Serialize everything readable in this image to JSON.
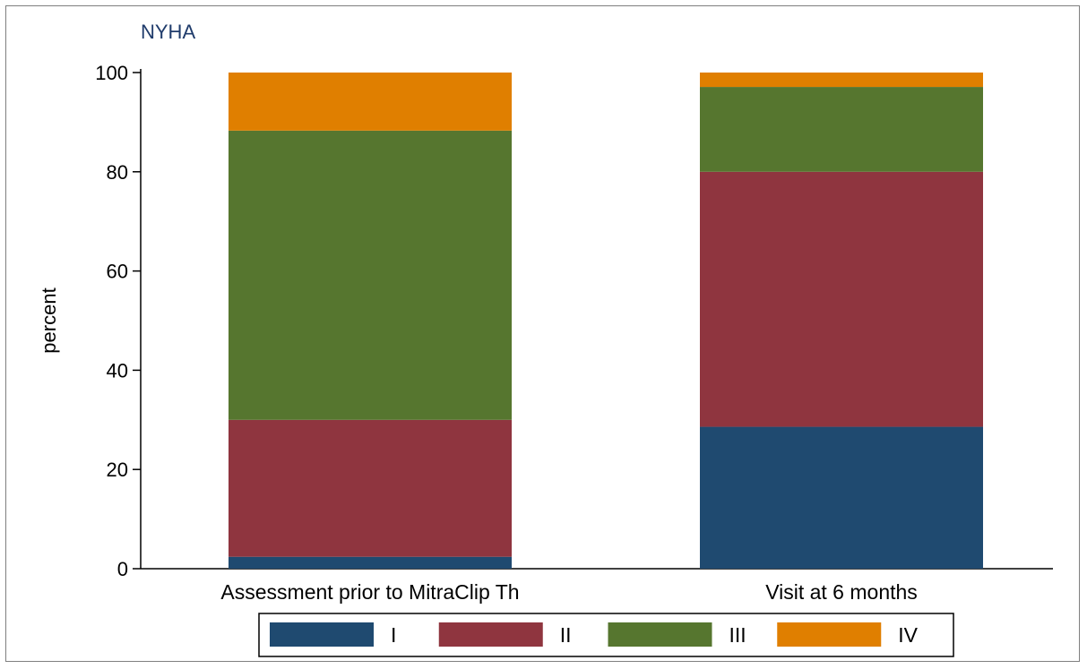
{
  "chart_data": {
    "type": "bar",
    "stacked": true,
    "title": "NYHA",
    "ylabel": "percent",
    "xlabel": "",
    "ylim": [
      0,
      100
    ],
    "yticks": [
      0,
      20,
      40,
      60,
      80,
      100
    ],
    "grid": false,
    "legend_position": "bottom",
    "categories": [
      "Assessment prior to MitraClip Th",
      "Visit at 6 months"
    ],
    "series": [
      {
        "name": "I",
        "color": "#1f4a70",
        "values": [
          2.4,
          28.6
        ]
      },
      {
        "name": "II",
        "color": "#8f353f",
        "values": [
          27.6,
          51.4
        ]
      },
      {
        "name": "III",
        "color": "#56762f",
        "values": [
          58.3,
          17.1
        ]
      },
      {
        "name": "IV",
        "color": "#e07f00",
        "values": [
          11.7,
          2.9
        ]
      }
    ],
    "title_color": "#1f3b6b"
  }
}
